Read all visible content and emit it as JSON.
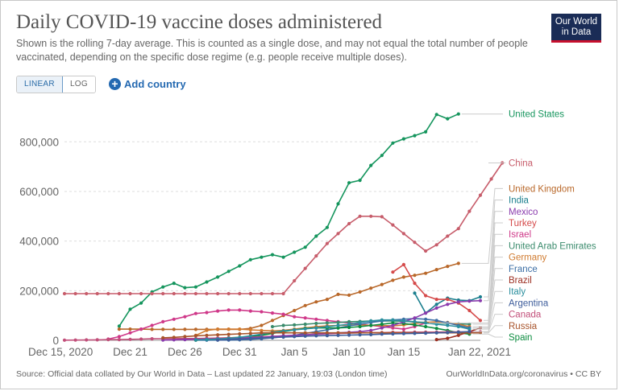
{
  "header": {
    "title": "Daily COVID-19 vaccine doses administered",
    "subtitle": "Shown is the rolling 7-day average. This is counted as a single dose, and may not equal the total number of people vaccinated, depending on the specific dose regime (e.g. people receive multiple doses).",
    "logo_line1": "Our World",
    "logo_line2": "in Data"
  },
  "controls": {
    "linear_label": "LINEAR",
    "log_label": "LOG",
    "add_country_label": "Add country"
  },
  "footer": {
    "source": "Source: Official data collated by Our World in Data – Last updated 22 January, 19:03 (London time)",
    "url": "OurWorldInData.org/coronavirus • CC BY"
  },
  "chart_data": {
    "type": "line",
    "title": "Daily COVID-19 vaccine doses administered",
    "xlabel": "",
    "ylabel": "",
    "x_ticks": [
      "Dec 15, 2020",
      "Dec 21",
      "Dec 26",
      "Dec 31",
      "Jan 5",
      "Jan 10",
      "Jan 15",
      "Jan 22, 2021"
    ],
    "y_ticks": [
      "0",
      "200,000",
      "400,000",
      "600,000",
      "800,000"
    ],
    "ylim": [
      0,
      950000
    ],
    "x_range": [
      "2020-12-15",
      "2021-01-22"
    ],
    "grid": "horizontal",
    "legend": "right, line end labels",
    "series": [
      {
        "name": "United States",
        "color": "#15955d",
        "start": "2020-12-20",
        "values": [
          57000,
          125000,
          150000,
          195000,
          215000,
          230000,
          212000,
          215000,
          235000,
          255000,
          278000,
          300000,
          325000,
          335000,
          345000,
          335000,
          355000,
          375000,
          420000,
          455000,
          550000,
          635000,
          645000,
          705000,
          745000,
          795000,
          812000,
          825000,
          840000,
          910000,
          893000,
          912000
        ]
      },
      {
        "name": "China",
        "color": "#c75d6b",
        "start": "2020-12-15",
        "values": [
          188000,
          188000,
          188000,
          188000,
          188000,
          188000,
          188000,
          188000,
          188000,
          188000,
          188000,
          188000,
          188000,
          188000,
          188000,
          188000,
          188000,
          188000,
          188000,
          188000,
          188000,
          240000,
          290000,
          340000,
          390000,
          430000,
          470000,
          500000,
          500000,
          498000,
          465000,
          430000,
          395000,
          360000,
          385000,
          420000,
          450000,
          520000,
          585000,
          650000,
          715000
        ]
      },
      {
        "name": "United Kingdom",
        "color": "#b9682a",
        "start": "2020-12-20",
        "values": [
          45000,
          45000,
          45000,
          44000,
          44000,
          44000,
          44000,
          44000,
          44000,
          44000,
          44000,
          44000,
          48000,
          60000,
          80000,
          100000,
          120000,
          140000,
          155000,
          165000,
          185000,
          182000,
          195000,
          210000,
          225000,
          242000,
          255000,
          262000,
          270000,
          285000,
          298000,
          310000
        ]
      },
      {
        "name": "India",
        "color": "#1b7f8e",
        "start": "2021-01-16",
        "values": [
          190000,
          110000,
          145000,
          170000,
          162000,
          160000,
          175000
        ]
      },
      {
        "name": "Israel",
        "color": "#cf3889",
        "start": "2020-12-19",
        "values": [
          5000,
          15000,
          30000,
          45000,
          60000,
          75000,
          85000,
          95000,
          108000,
          112000,
          118000,
          122000,
          122000,
          118000,
          115000,
          110000,
          105000,
          95000,
          90000,
          85000,
          80000,
          75000,
          70000,
          65000,
          60000,
          55000,
          50000,
          45000,
          55000,
          70000
        ]
      },
      {
        "name": "United Arab Emirates",
        "color": "#3a8b6c",
        "start": "2021-01-03",
        "values": [
          55000,
          60000,
          62000,
          65000,
          68000,
          70000,
          72000,
          75000,
          76000,
          78000,
          78000,
          78000,
          77000,
          74000,
          72000,
          70000,
          68000,
          66000,
          65000
        ]
      },
      {
        "name": "Turkey",
        "color": "#d54a4a",
        "start": "2021-01-14",
        "values": [
          275000,
          305000,
          230000,
          180000,
          165000,
          165000,
          150000,
          120000,
          80000
        ]
      },
      {
        "name": "Germany",
        "color": "#d07b30",
        "start": "2020-12-27",
        "values": [
          20000,
          40000,
          45000,
          45000,
          45000,
          42000,
          40000,
          38000,
          40000,
          45000,
          50000,
          55000,
          58000,
          60000,
          62000,
          62000,
          60000,
          60000,
          58000,
          62000,
          68000,
          72000,
          75000,
          72000,
          65000,
          55000
        ]
      },
      {
        "name": "France",
        "color": "#3b6ea5",
        "start": "2020-12-27",
        "values": [
          500,
          500,
          1000,
          1000,
          2000,
          4000,
          6000,
          10000,
          15000,
          20000,
          28000,
          35000,
          42000,
          50000,
          58000,
          65000,
          72000,
          78000,
          82000,
          85000,
          88000,
          85000,
          80000,
          70000,
          60000,
          50000
        ]
      },
      {
        "name": "Spain",
        "color": "#0b8c3f",
        "start": "2020-12-27",
        "values": [
          1000,
          5000,
          8000,
          10000,
          12000,
          15000,
          20000,
          28000,
          35000,
          42000,
          48000,
          50000,
          50000,
          50000,
          52000,
          55000,
          60000,
          65000,
          70000,
          68000,
          62000,
          55000,
          48000,
          40000,
          30000,
          25000
        ]
      },
      {
        "name": "Brazil",
        "color": "#9c2f22",
        "start": "2021-01-18",
        "values": [
          3000,
          8000,
          20000,
          35000,
          50000
        ]
      },
      {
        "name": "Canada",
        "color": "#c24f7a",
        "start": "2020-12-15",
        "values": [
          700,
          1000,
          1500,
          2000,
          3000,
          3000,
          4000,
          5000,
          6000,
          6500,
          7000,
          7000,
          7000,
          8000,
          9000,
          10000,
          11000,
          12000,
          14000,
          16000,
          18000,
          20000,
          22000,
          24000,
          26000,
          28000,
          29000,
          30000,
          31000,
          31000,
          32000,
          32000,
          33000,
          33000,
          33000,
          34000,
          34000,
          34000,
          34000
        ]
      },
      {
        "name": "Mexico",
        "color": "#8a3bad",
        "start": "2020-12-24",
        "values": [
          1000,
          2000,
          3000,
          4000,
          5000,
          6000,
          7000,
          8000,
          10000,
          12000,
          15000,
          18000,
          20000,
          22000,
          25000,
          28000,
          30000,
          32000,
          35000,
          40000,
          50000,
          60000,
          75000,
          90000,
          110000,
          130000,
          145000,
          155000,
          158000,
          160000
        ]
      },
      {
        "name": "Italy",
        "color": "#2b8f9e",
        "start": "2020-12-27",
        "values": [
          2000,
          3000,
          5000,
          8000,
          12000,
          18000,
          25000,
          32000,
          38000,
          42000,
          46000,
          50000,
          55000,
          60000,
          65000,
          72000,
          78000,
          82000,
          82000,
          78000,
          75000,
          70000,
          65000,
          60000,
          55000,
          45000
        ]
      },
      {
        "name": "Russia",
        "color": "#a8542b",
        "start": "2020-12-24",
        "values": [
          10000,
          12000,
          15000,
          18000,
          20000,
          22000,
          24000,
          26000,
          28000,
          30000,
          30000,
          30000,
          30000,
          30000,
          30000,
          30000,
          30000,
          30000,
          30000,
          30000,
          30000,
          30000,
          30000,
          30000,
          30000,
          30000,
          30000,
          30000,
          30000,
          30000
        ]
      },
      {
        "name": "Argentina",
        "color": "#3e5d9b",
        "start": "2020-12-29",
        "values": [
          1000,
          3000,
          5000,
          7000,
          9000,
          11000,
          13000,
          15000,
          17000,
          18000,
          19000,
          20000,
          21000,
          22000,
          23000,
          25000,
          26000,
          27000,
          28000,
          29000,
          30000,
          31000,
          33000,
          35000
        ]
      }
    ]
  }
}
